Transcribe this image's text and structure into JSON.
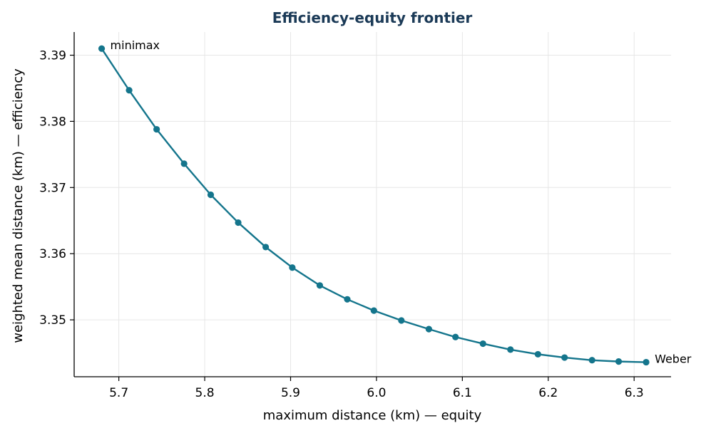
{
  "chart_data": {
    "type": "line",
    "title": "Efficiency-equity frontier",
    "xlabel": "maximum distance (km) — equity",
    "ylabel": "weighted mean distance (km) — efficiency",
    "xlim": [
      5.648,
      6.343
    ],
    "ylim": [
      3.3414,
      3.3935
    ],
    "xticks": [
      5.7,
      5.8,
      5.9,
      6.0,
      6.1,
      6.2,
      6.3
    ],
    "xtick_labels": [
      "5.7",
      "5.8",
      "5.9",
      "6.0",
      "6.1",
      "6.2",
      "6.3"
    ],
    "yticks": [
      3.35,
      3.36,
      3.37,
      3.38,
      3.39
    ],
    "ytick_labels": [
      "3.35",
      "3.36",
      "3.37",
      "3.38",
      "3.39"
    ],
    "grid": true,
    "color": "#14758c",
    "series": [
      {
        "x": [
          5.68,
          5.712,
          5.744,
          5.776,
          5.807,
          5.839,
          5.871,
          5.902,
          5.934,
          5.966,
          5.997,
          6.029,
          6.061,
          6.092,
          6.124,
          6.156,
          6.188,
          6.219,
          6.251,
          6.282,
          6.314
        ],
        "y": [
          3.391,
          3.3847,
          3.3788,
          3.3736,
          3.3689,
          3.3647,
          3.361,
          3.3579,
          3.3552,
          3.3531,
          3.3514,
          3.3499,
          3.3486,
          3.3474,
          3.3464,
          3.3455,
          3.3448,
          3.3443,
          3.3439,
          3.3437,
          3.3436
        ]
      }
    ],
    "annotations": [
      {
        "text": "minimax",
        "point_index": 0,
        "side": "right"
      },
      {
        "text": "Weber",
        "point_index": 20,
        "side": "right"
      }
    ]
  }
}
